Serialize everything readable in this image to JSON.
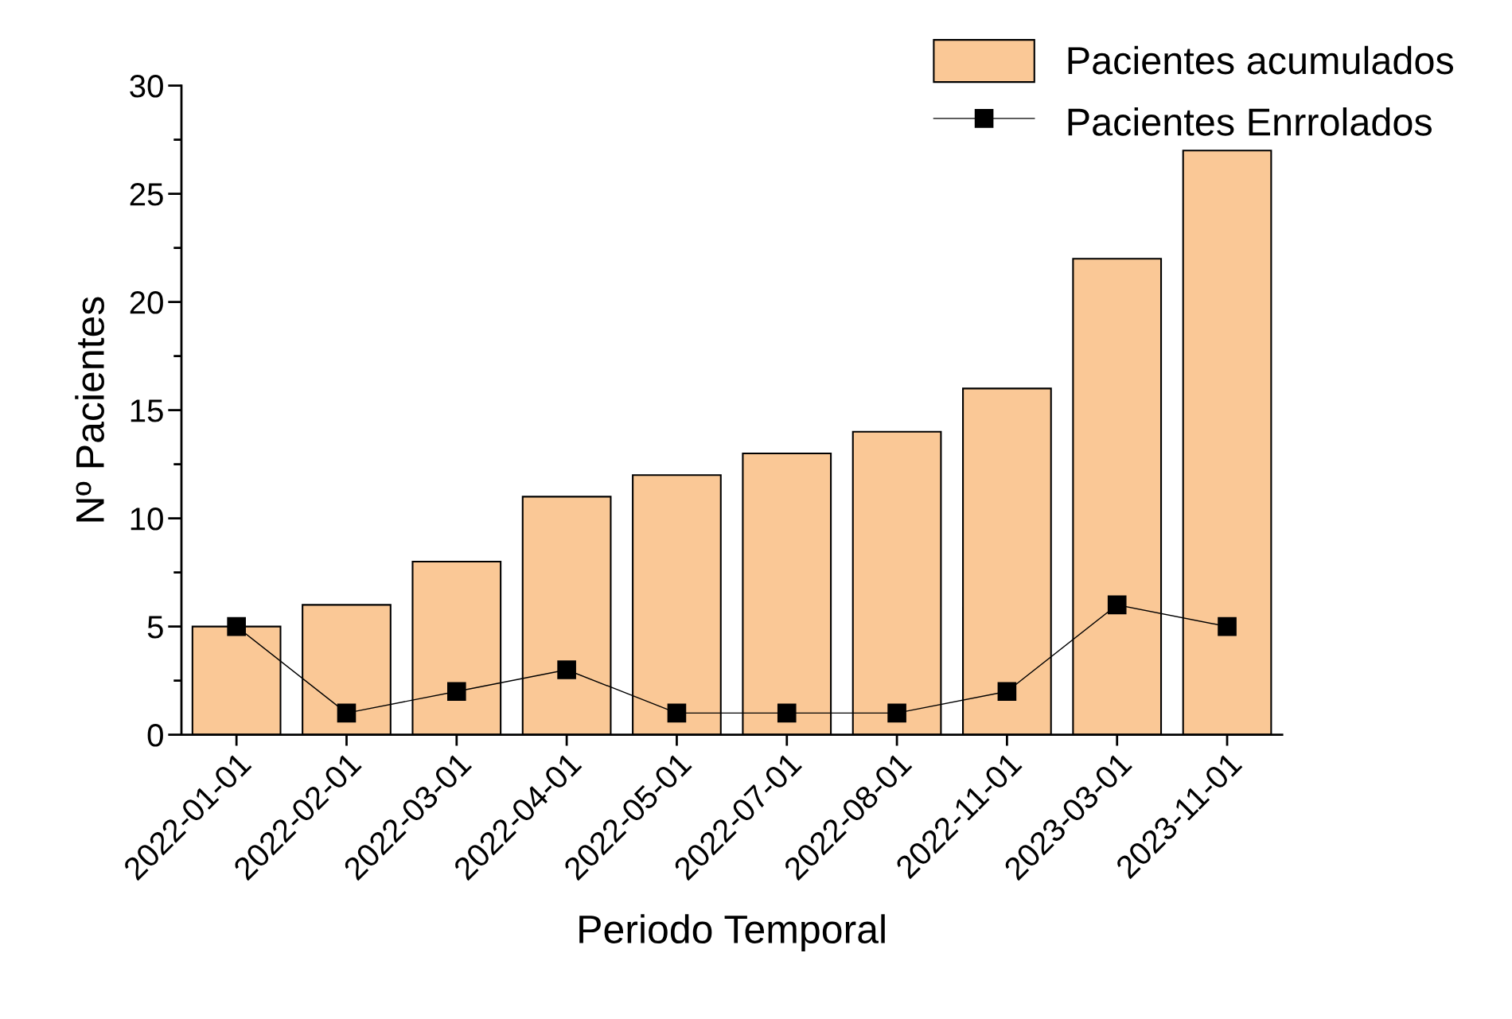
{
  "chart_data": {
    "type": "bar",
    "xlabel": "Periodo Temporal",
    "ylabel": "Nº Pacientes",
    "categories": [
      "2022-01-01",
      "2022-02-01",
      "2022-03-01",
      "2022-04-01",
      "2022-05-01",
      "2022-07-01",
      "2022-08-01",
      "2022-11-01",
      "2023-03-01",
      "2023-11-01"
    ],
    "series": [
      {
        "name": "Pacientes acumulados",
        "color": "#fac896",
        "values": [
          5,
          6,
          8,
          11,
          12,
          13,
          14,
          16,
          22,
          27
        ]
      },
      {
        "name": "Pacientes Enrrolados",
        "type": "line",
        "color": "#000000",
        "marker": "square",
        "line_style": "solid",
        "values": [
          5,
          1,
          2,
          3,
          1,
          1,
          1,
          2,
          6,
          5
        ]
      }
    ],
    "ylim": [
      0,
      30
    ],
    "yticks": [
      0,
      {
        "value": 2.5,
        "label": null
      },
      5,
      {
        "value": 7.5,
        "label": null
      },
      10,
      {
        "value": 12.5,
        "label": null
      },
      15,
      {
        "value": 17.5,
        "label": null
      },
      20,
      {
        "value": 22.5,
        "label": null
      },
      25,
      {
        "value": 27.5,
        "label": null
      },
      30
    ],
    "legend": "top right",
    "grid": false
  }
}
